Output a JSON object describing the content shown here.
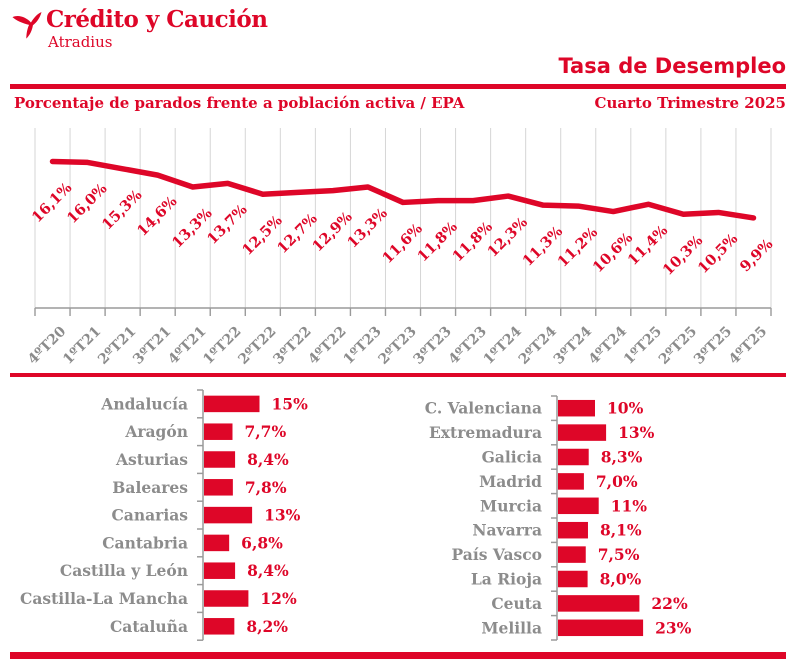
{
  "brand": {
    "name": "Crédito y Caución",
    "sub": "Atradius"
  },
  "header": {
    "title": "Tasa de Desempleo",
    "subtitle_left": "Porcentaje de parados frente a población activa / EPA",
    "subtitle_right": "Cuarto Trimestre 2025"
  },
  "colors": {
    "red": "#DE0628",
    "gray_label": "#8C8C8C",
    "grid": "#D6D6D6",
    "axis": "#9A9A9A"
  },
  "chart_data": [
    {
      "type": "line",
      "name": "tasa-desempleo-trimestral",
      "title": "",
      "xlabel": "",
      "ylabel": "",
      "ylim": [
        0,
        20
      ],
      "grid": "vertical",
      "legend": "none",
      "x": [
        "4ºT20",
        "1ºT21",
        "2ºT21",
        "3ºT21",
        "4ºT21",
        "1ºT22",
        "2ºT22",
        "3ºT22",
        "4ºT22",
        "1ºT23",
        "2ºT23",
        "3ºT23",
        "4ºT23",
        "1ºT24",
        "2ºT24",
        "3ºT24",
        "4ºT24",
        "1ºT25",
        "2ºT25",
        "3ºT25",
        "4ºT25"
      ],
      "values": [
        16.1,
        16.0,
        15.3,
        14.6,
        13.3,
        13.7,
        12.5,
        12.7,
        12.9,
        13.3,
        11.6,
        11.8,
        11.8,
        12.3,
        11.3,
        11.2,
        10.6,
        11.4,
        10.3,
        10.5,
        9.9
      ],
      "labels": [
        "16,1%",
        "16,0%",
        "15,3%",
        "14,6%",
        "13,3%",
        "13,7%",
        "12,5%",
        "12,7%",
        "12,9%",
        "13,3%",
        "11,6%",
        "11,8%",
        "11,8%",
        "12,3%",
        "11,3%",
        "11,2%",
        "10,6%",
        "11,4%",
        "10,3%",
        "10,5%",
        "9,9%"
      ]
    },
    {
      "type": "bar",
      "orientation": "horizontal",
      "name": "tasa-desempleo-ccaa-izquierda",
      "categories": [
        "Andalucía",
        "Aragón",
        "Asturias",
        "Baleares",
        "Canarias",
        "Cantabria",
        "Castilla y León",
        "Castilla-La Mancha",
        "Cataluña"
      ],
      "values": [
        15,
        7.7,
        8.4,
        7.8,
        13,
        6.8,
        8.4,
        12,
        8.2
      ],
      "labels": [
        "15%",
        "7,7%",
        "8,4%",
        "7,8%",
        "13%",
        "6,8%",
        "8,4%",
        "12%",
        "8,2%"
      ]
    },
    {
      "type": "bar",
      "orientation": "horizontal",
      "name": "tasa-desempleo-ccaa-derecha",
      "categories": [
        "C. Valenciana",
        "Extremadura",
        "Galicia",
        "Madrid",
        "Murcia",
        "Navarra",
        "País Vasco",
        "La Rioja",
        "Ceuta",
        "Melilla"
      ],
      "values": [
        10,
        13,
        8.3,
        7.0,
        11,
        8.1,
        7.5,
        8.0,
        22,
        23
      ],
      "labels": [
        "10%",
        "13%",
        "8,3%",
        "7,0%",
        "11%",
        "8,1%",
        "7,5%",
        "8,0%",
        "22%",
        "23%"
      ]
    }
  ]
}
